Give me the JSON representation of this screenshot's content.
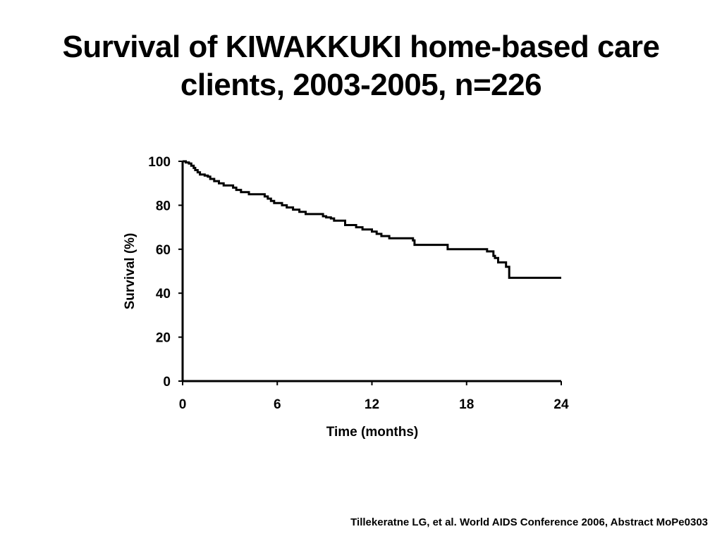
{
  "title_lines": [
    "Survival of KIWAKKUKI home-based care",
    "clients, 2003-2005, n=226"
  ],
  "citation": "Tillekeratne LG, et al. World AIDS Conference 2006, Abstract MoPe0303",
  "chart_data": {
    "type": "line",
    "title": "",
    "xlabel": "Time (months)",
    "ylabel": "Survival (%)",
    "xlim": [
      0,
      24
    ],
    "ylim": [
      0,
      100
    ],
    "x_ticks": [
      0,
      6,
      12,
      18,
      24
    ],
    "y_ticks": [
      0,
      20,
      40,
      60,
      80,
      100
    ],
    "grid": false,
    "legend": "none",
    "line_color": "#000000",
    "step": true,
    "series": [
      {
        "x": [
          0,
          0.2,
          0.4,
          0.55,
          0.7,
          0.8,
          0.95,
          1.1,
          1.4,
          1.6,
          1.75,
          2.0,
          2.3,
          2.6,
          3.2,
          3.4,
          3.7,
          4.2,
          4.5,
          5.2,
          5.4,
          5.6,
          5.8,
          6.3,
          6.6,
          7.0,
          7.4,
          7.8,
          8.1,
          8.9,
          9.1,
          9.4,
          9.6,
          10.3,
          11.0,
          11.4,
          12.0,
          12.3,
          12.6,
          13.1,
          14.6,
          14.7,
          16.8,
          18.2,
          19.3,
          19.6,
          19.7,
          19.8,
          20.0,
          20.5,
          20.7,
          24.0
        ],
        "y": [
          100,
          99.5,
          99,
          98,
          97,
          96,
          95,
          94,
          93.5,
          93,
          92,
          91,
          90,
          89,
          88,
          87,
          86,
          85,
          85,
          84,
          83,
          82,
          81,
          80,
          79,
          78,
          77,
          76,
          76,
          75,
          74.5,
          74,
          73,
          71,
          70,
          69,
          68,
          67,
          66,
          65,
          64,
          62,
          60,
          60,
          59,
          59,
          57,
          56,
          54,
          52,
          47,
          47
        ]
      }
    ]
  }
}
